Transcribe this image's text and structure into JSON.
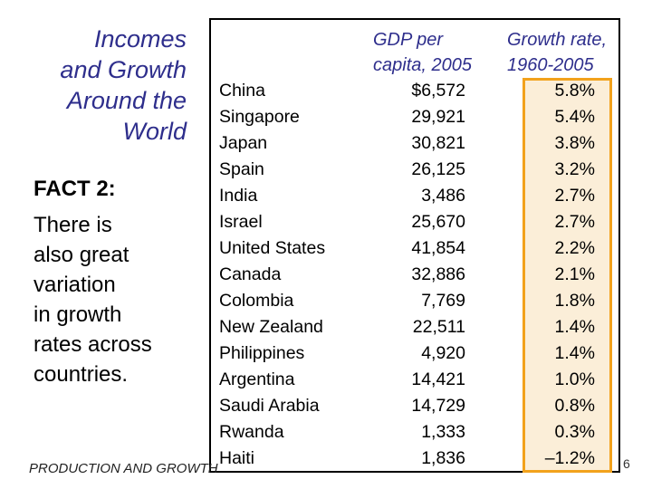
{
  "slide": {
    "title_lines": [
      "Incomes",
      "and Growth",
      "Around the",
      "World"
    ],
    "fact_heading": "FACT 2:",
    "fact_lines": [
      "There is",
      "also great",
      "variation",
      "in growth",
      "rates across",
      "countries."
    ],
    "footer": "PRODUCTION AND GROWTH",
    "page_number": "6"
  },
  "table": {
    "gdp_header": [
      "GDP per",
      "capita, 2005"
    ],
    "growth_header": [
      "Growth rate,",
      "1960-2005"
    ],
    "countries": [
      "China",
      "Singapore",
      "Japan",
      "Spain",
      "India",
      "Israel",
      "United States",
      "Canada",
      "Colombia",
      "New Zealand",
      "Philippines",
      "Argentina",
      "Saudi Arabia",
      "Rwanda",
      "Haiti"
    ],
    "gdp": [
      "$6,572",
      "29,921",
      "30,821",
      "26,125",
      "3,486",
      "25,670",
      "41,854",
      "32,886",
      "7,769",
      "22,511",
      "4,920",
      "14,421",
      "14,729",
      "1,333",
      "1,836"
    ],
    "growth": [
      "5.8%",
      "5.4%",
      "3.8%",
      "3.2%",
      "2.7%",
      "2.7%",
      "2.2%",
      "2.1%",
      "1.8%",
      "1.4%",
      "1.4%",
      "1.0%",
      "0.8%",
      "0.3%",
      "–1.2%"
    ]
  },
  "colors": {
    "title": "#2e2e8c",
    "highlight_fill": "#fbeed8",
    "highlight_border": "#f2a21c"
  }
}
